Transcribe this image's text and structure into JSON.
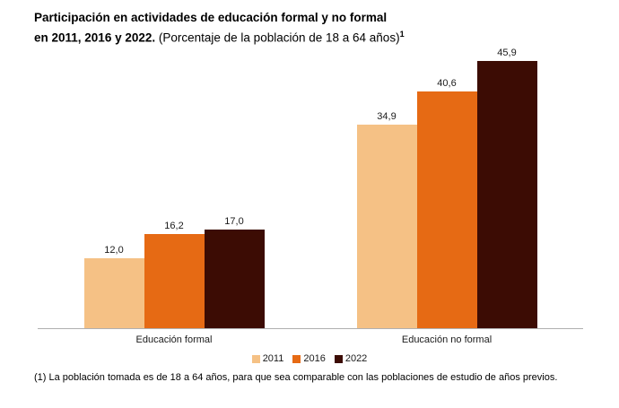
{
  "title": {
    "bold_line1": "Participación en actividades de educación formal y no formal",
    "bold_line2": "en 2011, 2016 y 2022.",
    "normal": " (Porcentaje de la población de 18 a 64 años)",
    "superscript": "1"
  },
  "chart_data": {
    "type": "bar",
    "title": "Participación en actividades de educación formal y no formal en 2011, 2016 y 2022. (Porcentaje de la población de 18 a 64 años)",
    "categories": [
      "Educación formal",
      "Educación no formal"
    ],
    "series": [
      {
        "name": "2011",
        "color": "#F5C185",
        "values": [
          12.0,
          34.9
        ],
        "labels": [
          "12,0",
          "34,9"
        ]
      },
      {
        "name": "2016",
        "color": "#E66A14",
        "values": [
          16.2,
          40.6
        ],
        "labels": [
          "16,2",
          "40,6"
        ]
      },
      {
        "name": "2022",
        "color": "#3C0C04",
        "values": [
          17.0,
          45.9
        ],
        "labels": [
          "17,0",
          "45,9"
        ]
      }
    ],
    "xlabel": "",
    "ylabel": "",
    "ylim": [
      0,
      48
    ],
    "grid": false,
    "legend_position": "bottom"
  },
  "footnote": "(1) La población tomada es de 18 a 64 años, para que sea comparable con las poblaciones de estudio de años previos."
}
